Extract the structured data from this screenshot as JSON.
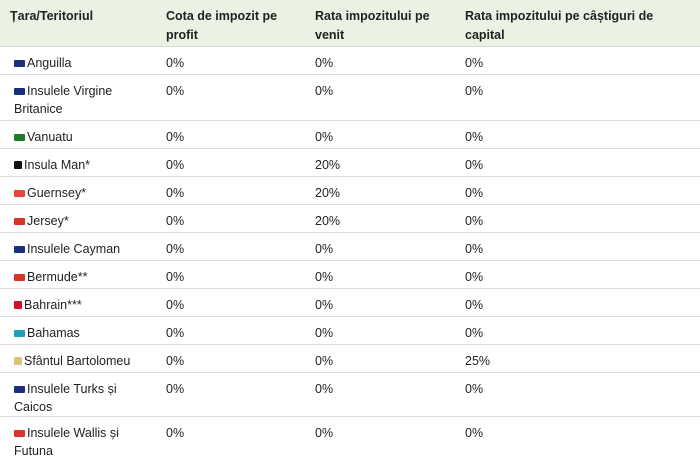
{
  "headers": {
    "country": "Țara/Teritoriul",
    "profit_tax": "Cota de impozit pe profit",
    "income_tax": "Rata impozitului pe venit",
    "capital_gains_tax": "Rata impozitului pe câștiguri de capital"
  },
  "rows": [
    {
      "country": "Anguilla",
      "flag": "anguilla-flag-icon",
      "flag_color": "#1a2e7a",
      "profit": "0%",
      "income": "0%",
      "capital": "0%"
    },
    {
      "country": "Insulele Virgine Britanice",
      "flag": "bvi-flag-icon",
      "flag_color": "#1a2e7a",
      "profit": "0%",
      "income": "0%",
      "capital": "0%"
    },
    {
      "country": "Vanuatu",
      "flag": "vanuatu-flag-icon",
      "flag_color": "#1f7a2e",
      "profit": "0%",
      "income": "0%",
      "capital": "0%"
    },
    {
      "country": "Insula Man*",
      "flag": "isle-of-man-flag-icon",
      "flag_color": "#111111",
      "profit": "0%",
      "income": "20%",
      "capital": "0%"
    },
    {
      "country": "Guernsey*",
      "flag": "guernsey-flag-icon",
      "flag_color": "#e8463a",
      "profit": "0%",
      "income": "20%",
      "capital": "0%"
    },
    {
      "country": "Jersey*",
      "flag": "jersey-flag-icon",
      "flag_color": "#d8342a",
      "profit": "0%",
      "income": "20%",
      "capital": "0%"
    },
    {
      "country": "Insulele Cayman",
      "flag": "cayman-flag-icon",
      "flag_color": "#1a2e7a",
      "profit": "0%",
      "income": "0%",
      "capital": "0%"
    },
    {
      "country": "Bermude**",
      "flag": "bermuda-flag-icon",
      "flag_color": "#d8342a",
      "profit": "0%",
      "income": "0%",
      "capital": "0%"
    },
    {
      "country": "Bahrain***",
      "flag": "bahrain-flag-icon",
      "flag_color": "#ce1126",
      "profit": "0%",
      "income": "0%",
      "capital": "0%"
    },
    {
      "country": "Bahamas",
      "flag": "bahamas-flag-icon",
      "flag_color": "#1fa0b8",
      "profit": "0%",
      "income": "0%",
      "capital": "0%"
    },
    {
      "country": "Sfântul Bartolomeu",
      "flag": "saint-barthelemy-flag-icon",
      "flag_color": "#d9c27a",
      "profit": "0%",
      "income": "0%",
      "capital": "25%"
    },
    {
      "country": "Insulele Turks și Caicos",
      "flag": "turks-caicos-flag-icon",
      "flag_color": "#1a2e7a",
      "profit": "0%",
      "income": "0%",
      "capital": "0%"
    },
    {
      "country": "Insulele Wallis și Futuna",
      "flag": "wallis-futuna-flag-icon",
      "flag_color": "#d8342a",
      "profit": "0%",
      "income": "0%",
      "capital": "0%"
    }
  ],
  "colors": {
    "header_bg": "#eaf3e3",
    "row_border": "#dcdcdc",
    "text": "#222222"
  }
}
